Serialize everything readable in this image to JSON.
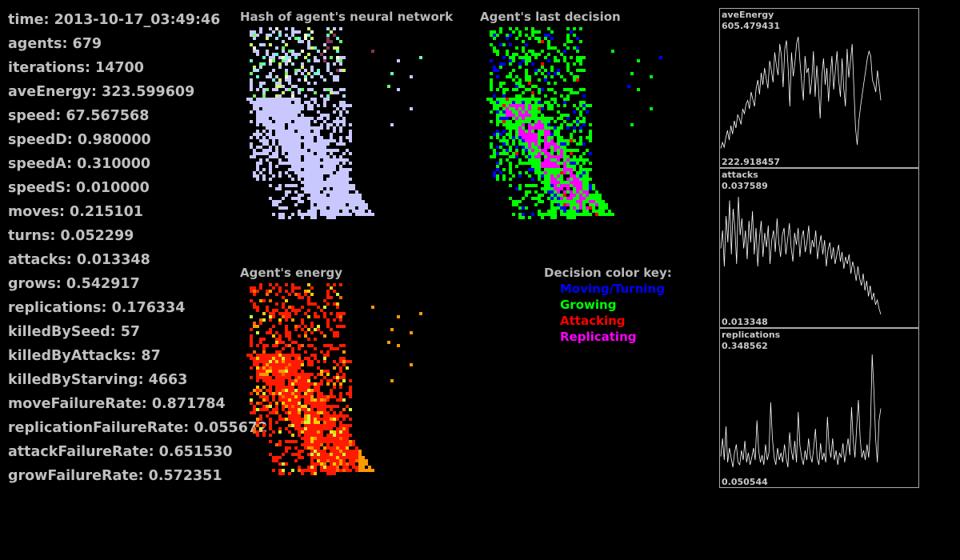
{
  "stats": [
    {
      "key": "time",
      "value": "2013-10-17_03:49:46"
    },
    {
      "key": "agents",
      "value": "679"
    },
    {
      "key": "iterations",
      "value": "14700"
    },
    {
      "key": "aveEnergy",
      "value": "323.599609"
    },
    {
      "key": "speed",
      "value": "67.567568"
    },
    {
      "key": "speedD",
      "value": "0.980000"
    },
    {
      "key": "speedA",
      "value": "0.310000"
    },
    {
      "key": "speedS",
      "value": "0.010000"
    },
    {
      "key": "moves",
      "value": "0.215101"
    },
    {
      "key": "turns",
      "value": "0.052299"
    },
    {
      "key": "attacks",
      "value": "0.013348"
    },
    {
      "key": "grows",
      "value": "0.542917"
    },
    {
      "key": "replications",
      "value": "0.176334"
    },
    {
      "key": "killedBySeed",
      "value": "57"
    },
    {
      "key": "killedByAttacks",
      "value": "87"
    },
    {
      "key": "killedByStarving",
      "value": "4663"
    },
    {
      "key": "moveFailureRate",
      "value": "0.871784"
    },
    {
      "key": "replicationFailureRate",
      "value": "0.055672"
    },
    {
      "key": "attackFailureRate",
      "value": "0.651530"
    },
    {
      "key": "growFailureRate",
      "value": "0.572351"
    }
  ],
  "panels": {
    "hash_title": "Hash of agent's neural network",
    "decision_title": "Agent's last decision",
    "energy_title": "Agent's energy"
  },
  "key": {
    "title": "Decision color key:",
    "items": [
      {
        "label": "Moving/Turning",
        "color": "#0000ff"
      },
      {
        "label": "Growing",
        "color": "#00ff00"
      },
      {
        "label": "Attacking",
        "color": "#ff0000"
      },
      {
        "label": "Replicating",
        "color": "#ff00ff"
      }
    ]
  },
  "colors": {
    "hash_main": "#c8c8ff",
    "hash_misc": [
      "#66ff66",
      "#ccff66",
      "#66ffcc",
      "#ffffcc",
      "#aaddff",
      "#883355"
    ],
    "energy_main": "#ff1a00",
    "energy_misc": [
      "#ff6600",
      "#ffcc00",
      "#ccff33",
      "#ff9900"
    ],
    "graph_line": "#ffffff"
  },
  "graphs": [
    {
      "name": "aveEnergy",
      "max_label": "605.479431",
      "min_label": "222.918457",
      "values": [
        0.05,
        0.1,
        0.06,
        0.14,
        0.2,
        0.12,
        0.24,
        0.17,
        0.28,
        0.22,
        0.33,
        0.3,
        0.25,
        0.38,
        0.34,
        0.42,
        0.45,
        0.38,
        0.52,
        0.46,
        0.4,
        0.55,
        0.62,
        0.5,
        0.68,
        0.58,
        0.72,
        0.63,
        0.55,
        0.78,
        0.7,
        0.6,
        0.85,
        0.74,
        0.66,
        0.92,
        0.82,
        0.56,
        0.88,
        0.95,
        0.72,
        0.4,
        0.85,
        0.65,
        0.76,
        0.92,
        0.98,
        0.78,
        0.6,
        0.45,
        0.82,
        0.68,
        0.72,
        0.5,
        0.62,
        0.86,
        0.48,
        0.74,
        0.56,
        0.3,
        0.65,
        0.8,
        0.58,
        0.72,
        0.44,
        0.66,
        0.82,
        0.54,
        0.7,
        0.86,
        0.62,
        0.48,
        0.8,
        0.55,
        0.4,
        0.88,
        0.64,
        0.78,
        0.92,
        0.56,
        0.22,
        0.08,
        0.28,
        0.4,
        0.5,
        0.6,
        0.7,
        0.8,
        0.86,
        0.82,
        0.62,
        0.58,
        0.52,
        0.7,
        0.58,
        0.45
      ]
    },
    {
      "name": "attacks",
      "max_label": "0.037589",
      "min_label": "0.013348",
      "values": [
        0.55,
        0.7,
        0.4,
        0.82,
        0.6,
        0.95,
        0.5,
        0.88,
        0.72,
        0.42,
        0.98,
        0.66,
        0.8,
        0.55,
        0.7,
        0.46,
        0.78,
        0.6,
        0.86,
        0.5,
        0.72,
        0.4,
        0.64,
        0.78,
        0.48,
        0.68,
        0.56,
        0.74,
        0.42,
        0.62,
        0.7,
        0.52,
        0.8,
        0.6,
        0.48,
        0.66,
        0.72,
        0.5,
        0.62,
        0.76,
        0.56,
        0.44,
        0.68,
        0.58,
        0.72,
        0.48,
        0.64,
        0.7,
        0.52,
        0.6,
        0.74,
        0.5,
        0.62,
        0.56,
        0.7,
        0.46,
        0.58,
        0.66,
        0.5,
        0.62,
        0.4,
        0.54,
        0.6,
        0.46,
        0.56,
        0.42,
        0.5,
        0.58,
        0.44,
        0.52,
        0.38,
        0.48,
        0.42,
        0.5,
        0.34,
        0.44,
        0.38,
        0.28,
        0.4,
        0.3,
        0.24,
        0.34,
        0.2,
        0.28,
        0.15,
        0.24,
        0.12,
        0.18,
        0.08,
        0.12,
        0.05,
        0.0
      ]
    },
    {
      "name": "replications",
      "max_label": "0.348562",
      "min_label": "0.050544",
      "values": [
        0.15,
        0.3,
        0.12,
        0.4,
        0.1,
        0.22,
        0.14,
        0.06,
        0.18,
        0.25,
        0.1,
        0.08,
        0.2,
        0.12,
        0.28,
        0.1,
        0.18,
        0.08,
        0.14,
        0.22,
        0.12,
        0.45,
        0.2,
        0.1,
        0.16,
        0.08,
        0.25,
        0.12,
        0.18,
        0.6,
        0.3,
        0.14,
        0.08,
        0.22,
        0.12,
        0.18,
        0.1,
        0.25,
        0.14,
        0.06,
        0.35,
        0.2,
        0.12,
        0.28,
        0.1,
        0.52,
        0.24,
        0.14,
        0.08,
        0.2,
        0.12,
        0.3,
        0.16,
        0.1,
        0.22,
        0.38,
        0.14,
        0.08,
        0.26,
        0.12,
        0.18,
        0.1,
        0.48,
        0.22,
        0.14,
        0.3,
        0.12,
        0.2,
        0.08,
        0.18,
        0.14,
        0.26,
        0.1,
        0.2,
        0.3,
        0.16,
        0.56,
        0.28,
        0.14,
        0.4,
        0.62,
        0.3,
        0.14,
        0.2,
        0.12,
        0.25,
        0.14,
        0.4,
        1.0,
        0.7,
        0.3,
        0.1,
        0.45,
        0.55
      ]
    }
  ]
}
